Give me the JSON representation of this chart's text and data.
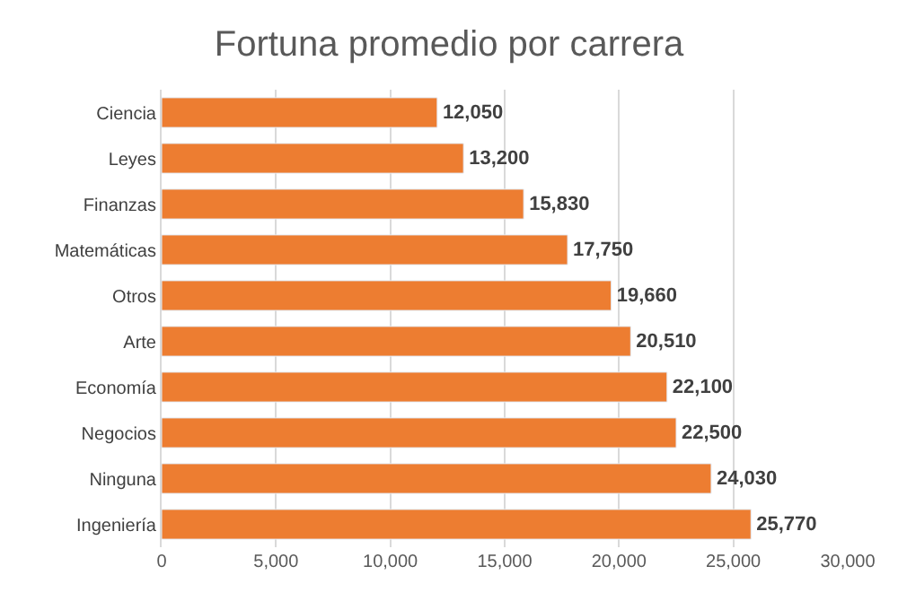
{
  "chart_data": {
    "type": "bar",
    "orientation": "horizontal",
    "title": "Fortuna promedio por carrera",
    "categories": [
      "Ciencia",
      "Leyes",
      "Finanzas",
      "Matemáticas",
      "Otros",
      "Arte",
      "Economía",
      "Negocios",
      "Ninguna",
      "Ingeniería"
    ],
    "values": [
      12050,
      13200,
      15830,
      17750,
      19660,
      20510,
      22100,
      22500,
      24030,
      25770
    ],
    "value_labels": [
      "12,050",
      "13,200",
      "15,830",
      "17,750",
      "19,660",
      "20,510",
      "22,100",
      "22,500",
      "24,030",
      "25,770"
    ],
    "color": "#ed7d31",
    "grid": "x",
    "xlim": [
      0,
      30000
    ],
    "xticks": [
      0,
      {
        "value": 5000,
        "label": "5,000"
      },
      {
        "value": 10000,
        "label": "10,000"
      },
      {
        "value": 15000,
        "label": "15,000"
      },
      {
        "value": 20000,
        "label": "20,000"
      },
      {
        "value": 25000,
        "label": "25,000"
      },
      {
        "value": 30000,
        "label": "30,000"
      }
    ]
  }
}
